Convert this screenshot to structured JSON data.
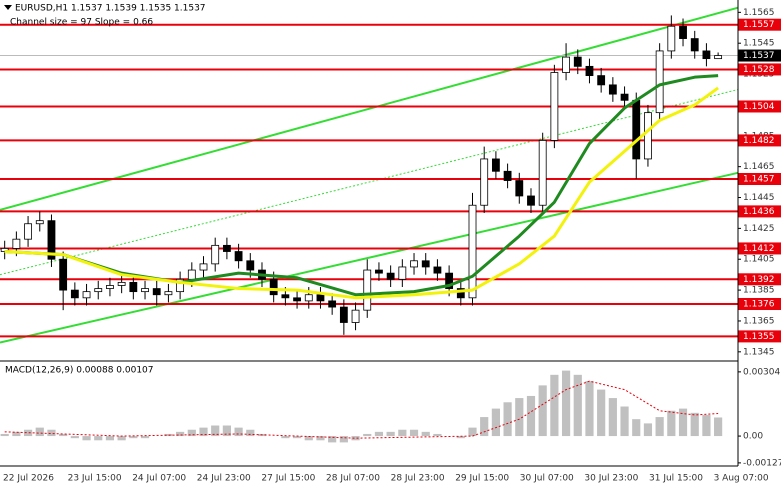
{
  "chart_data": [
    {
      "type": "candlestick",
      "title": "EURUSD,H1  1.1537 1.1539 1.1535 1.1537",
      "subtitle": "Channel size = 97 Slope = 0.66",
      "categories": [
        "22 Jul 2026",
        "23 Jul 15:00",
        "24 Jul 07:00",
        "24 Jul 23:00",
        "27 Jul 15:00",
        "28 Jul 07:00",
        "28 Jul 23:00",
        "29 Jul 15:00",
        "30 Jul 07:00",
        "30 Jul 23:00",
        "31 Jul 15:00",
        "3 Aug 07:00"
      ],
      "xlim": [
        -0.4,
        62.7
      ],
      "ylim": [
        1.1341,
        1.1573
      ],
      "yticks": [
        1.1565,
        1.1545,
        1.1525,
        1.1505,
        1.1485,
        1.1465,
        1.1445,
        1.1425,
        1.1405,
        1.1385,
        1.1365,
        1.1345
      ],
      "up_color": "#ffffff",
      "down_color": "#000000",
      "wick_color": "#000000",
      "open": [
        1.141,
        1.1412,
        1.1418,
        1.1428,
        1.143,
        1.1405,
        1.1385,
        1.138,
        1.1384,
        1.1386,
        1.1388,
        1.139,
        1.1384,
        1.1386,
        1.1382,
        1.1384,
        1.1392,
        1.1398,
        1.1402,
        1.1414,
        1.141,
        1.1404,
        1.1398,
        1.1392,
        1.1382,
        1.138,
        1.1378,
        1.1382,
        1.1378,
        1.1374,
        1.1364,
        1.1372,
        1.1398,
        1.1396,
        1.1392,
        1.14,
        1.1404,
        1.14,
        1.1396,
        1.1386,
        1.138,
        1.144,
        1.147,
        1.1462,
        1.1456,
        1.1446,
        1.144,
        1.1482,
        1.1526,
        1.1536,
        1.153,
        1.1524,
        1.1518,
        1.1512,
        1.1508,
        1.147,
        1.15,
        1.154,
        1.1556,
        1.1548,
        1.154,
        1.1535
      ],
      "high": [
        1.1417,
        1.1423,
        1.1433,
        1.1436,
        1.1434,
        1.141,
        1.139,
        1.1389,
        1.1391,
        1.1393,
        1.1395,
        1.1395,
        1.1391,
        1.1391,
        1.1389,
        1.1397,
        1.1403,
        1.1407,
        1.1419,
        1.1419,
        1.1415,
        1.1409,
        1.1403,
        1.1397,
        1.1387,
        1.1385,
        1.1387,
        1.1387,
        1.1383,
        1.1379,
        1.1377,
        1.1405,
        1.1403,
        1.1401,
        1.1405,
        1.1409,
        1.1409,
        1.1405,
        1.1401,
        1.1391,
        1.1448,
        1.1478,
        1.1475,
        1.1467,
        1.1461,
        1.1451,
        1.1487,
        1.1531,
        1.1545,
        1.1541,
        1.1535,
        1.1529,
        1.1523,
        1.1517,
        1.1513,
        1.1505,
        1.1545,
        1.1563,
        1.1561,
        1.1553,
        1.1545,
        1.1539
      ],
      "low": [
        1.1405,
        1.1407,
        1.1413,
        1.1423,
        1.14,
        1.1372,
        1.1375,
        1.1375,
        1.1379,
        1.1381,
        1.1383,
        1.1379,
        1.1379,
        1.1375,
        1.1377,
        1.1379,
        1.1387,
        1.1393,
        1.1397,
        1.1405,
        1.1399,
        1.1393,
        1.1387,
        1.1377,
        1.1375,
        1.1373,
        1.1373,
        1.1373,
        1.1369,
        1.1356,
        1.1359,
        1.1367,
        1.1391,
        1.1387,
        1.1387,
        1.1395,
        1.1395,
        1.1391,
        1.1381,
        1.1375,
        1.1375,
        1.1435,
        1.1457,
        1.1451,
        1.1441,
        1.1435,
        1.1435,
        1.1477,
        1.1521,
        1.1525,
        1.1519,
        1.1513,
        1.1507,
        1.1503,
        1.1457,
        1.1465,
        1.1495,
        1.1535,
        1.1543,
        1.1535,
        1.153,
        1.1535
      ],
      "close": [
        1.1412,
        1.1418,
        1.1428,
        1.143,
        1.1405,
        1.1385,
        1.138,
        1.1384,
        1.1386,
        1.1388,
        1.139,
        1.1384,
        1.1386,
        1.1382,
        1.1384,
        1.1392,
        1.1398,
        1.1402,
        1.1414,
        1.141,
        1.1404,
        1.1398,
        1.1392,
        1.1382,
        1.138,
        1.1378,
        1.1382,
        1.1378,
        1.1374,
        1.1364,
        1.1372,
        1.1398,
        1.1396,
        1.1392,
        1.14,
        1.1404,
        1.14,
        1.1396,
        1.1386,
        1.138,
        1.144,
        1.147,
        1.1462,
        1.1456,
        1.1446,
        1.144,
        1.1482,
        1.1526,
        1.1536,
        1.153,
        1.1524,
        1.1518,
        1.1512,
        1.1508,
        1.147,
        1.15,
        1.154,
        1.1556,
        1.1548,
        1.154,
        1.1535,
        1.1537
      ],
      "moving_averages": [
        {
          "color": "#1f8a1f",
          "x": [
            0,
            5,
            10,
            15,
            20,
            25,
            30,
            35,
            38,
            40,
            44,
            47,
            50,
            53,
            56,
            59,
            61
          ],
          "values": [
            1.141,
            1.1408,
            1.1396,
            1.139,
            1.1396,
            1.1393,
            1.1382,
            1.1384,
            1.1388,
            1.1394,
            1.142,
            1.1442,
            1.148,
            1.1503,
            1.1518,
            1.1523,
            1.1524
          ]
        },
        {
          "color": "#f2f20a",
          "x": [
            0,
            5,
            10,
            15,
            20,
            25,
            30,
            35,
            40,
            44,
            47,
            50,
            53,
            56,
            59,
            61
          ],
          "values": [
            1.141,
            1.1408,
            1.1395,
            1.139,
            1.1386,
            1.1385,
            1.138,
            1.1382,
            1.1385,
            1.1402,
            1.142,
            1.1455,
            1.1475,
            1.1495,
            1.1505,
            1.1516
          ]
        }
      ],
      "channel": [
        {
          "color": "#33dd33",
          "x": [
            -0.4,
            62.7
          ],
          "values": [
            1.1437,
            1.1568
          ]
        },
        {
          "color": "#33dd33",
          "x": [
            -0.4,
            62.7
          ],
          "values": [
            1.1351,
            1.1461
          ]
        },
        {
          "color": "#33dd33",
          "dashed": true,
          "x": [
            -0.4,
            62.7
          ],
          "values": [
            1.1395,
            1.1515
          ]
        }
      ],
      "levels": [
        1.1557,
        1.1528,
        1.1504,
        1.1482,
        1.1457,
        1.1436,
        1.1412,
        1.1392,
        1.1376,
        1.1355
      ],
      "level_color": "#e8000b",
      "current_price": 1.1537
    },
    {
      "type": "macd",
      "title": "MACD(12,26,9) 0.00088 0.00107",
      "xlim": [
        -0.4,
        62.7
      ],
      "ylim": [
        -0.00137,
        0.00346
      ],
      "yticks": [
        0.00304,
        {
          "value": 0,
          "label": "0.00"
        },
        -0.00127
      ],
      "histogram_color": "#c0c0c0",
      "histogram": [
        0.0001,
        0.0002,
        0.0003,
        0.0004,
        0.0003,
        0.0001,
        -0.0001,
        -0.0002,
        -0.0002,
        -0.0002,
        -0.0002,
        -0.0001,
        -0.0001,
        0.0,
        0.0001,
        0.0002,
        0.0003,
        0.0004,
        0.0005,
        0.0005,
        0.0004,
        0.0003,
        0.0001,
        0.0,
        -0.0001,
        -0.0001,
        -0.0002,
        -0.0002,
        -0.0003,
        -0.0003,
        -0.0002,
        0.0001,
        0.0002,
        0.0002,
        0.0003,
        0.0003,
        0.0002,
        0.0001,
        0.0,
        -0.0001,
        0.0004,
        0.0009,
        0.0013,
        0.0016,
        0.0018,
        0.0019,
        0.0024,
        0.0029,
        0.0031,
        0.0029,
        0.0026,
        0.0022,
        0.0018,
        0.0014,
        0.0008,
        0.0006,
        0.0009,
        0.0012,
        0.0013,
        0.0011,
        0.001,
        0.00088
      ],
      "signal": {
        "color": "#e8000b",
        "x": [
          0,
          10,
          20,
          30,
          40,
          44,
          48,
          50,
          53,
          56,
          59,
          61
        ],
        "values": [
          0.0002,
          0.0,
          0.0001,
          -0.0001,
          0.0,
          0.0008,
          0.0022,
          0.0026,
          0.0022,
          0.0012,
          0.001,
          0.00107
        ]
      }
    }
  ]
}
